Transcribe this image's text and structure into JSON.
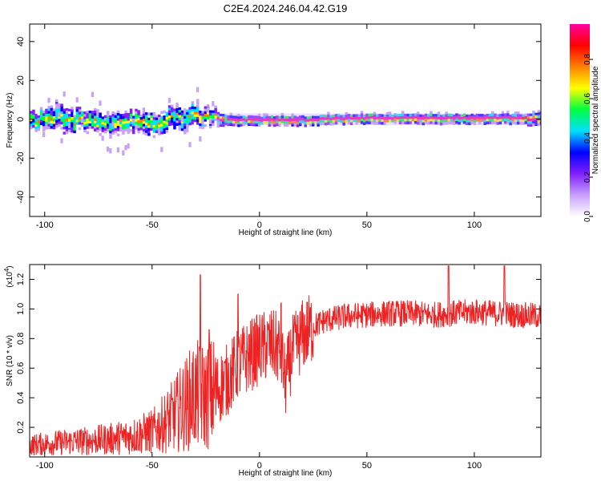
{
  "title": "C2E4.2024.246.04.42.G19",
  "chart_data": [
    {
      "type": "heatmap",
      "xlabel": "Height of straight line (km)",
      "ylabel": "Frequency (Hz)",
      "xlim": [
        -107,
        131
      ],
      "ylim": [
        -50,
        49
      ],
      "xticks": [
        -100,
        -50,
        0,
        50,
        100
      ],
      "yticks": [
        -40,
        -20,
        0,
        20,
        40
      ],
      "xtick_labels": [
        "-100",
        "-50",
        "0",
        "50",
        "100"
      ],
      "ytick_labels": [
        "-40",
        "-20",
        "0",
        "20",
        "40"
      ],
      "ridge": {
        "x": [
          -107,
          -100,
          -95,
          -90,
          -85,
          -80,
          -75,
          -70,
          -65,
          -60,
          -55,
          -50,
          -45,
          -40,
          -35,
          -30,
          -25,
          -20,
          -15,
          -10,
          -5,
          0,
          10,
          20,
          40,
          60,
          80,
          100,
          120,
          131
        ],
        "freq": [
          0,
          1,
          2,
          1,
          0,
          0,
          -1,
          -1,
          -2,
          -1,
          0,
          -1,
          0,
          1,
          2,
          2,
          1,
          1,
          0,
          0,
          0,
          0,
          0,
          0,
          1,
          1,
          1,
          1,
          1,
          1
        ],
        "spread": [
          5,
          6,
          7,
          7,
          6,
          6,
          6,
          6,
          6,
          6,
          6,
          6,
          6,
          7,
          7,
          7,
          5,
          4,
          3,
          3,
          3,
          3,
          3,
          3,
          3,
          3,
          3,
          3,
          3,
          4
        ]
      },
      "colorbar": {
        "label": "Normalized spectral amplitude",
        "range": [
          0,
          0.98
        ],
        "ticks": [
          0,
          0.2,
          0.4,
          0.6,
          0.8
        ],
        "tick_labels": [
          "0.0",
          "0.2",
          "0.4",
          "0.6",
          "0.8"
        ],
        "colors": [
          "#ffffff",
          "#c8a0ff",
          "#8020ff",
          "#0000ff",
          "#00e0ff",
          "#00ff40",
          "#ffff00",
          "#ff8000",
          "#ff0000",
          "#ff00a0"
        ]
      }
    },
    {
      "type": "line",
      "xlabel": "Height of straight line (km)",
      "ylabel": "SNR (10 * v/v)",
      "yscale_label": "(x10",
      "yscale_exp": "4",
      "yscale_close": ")",
      "xlim": [
        -107,
        131
      ],
      "ylim": [
        0,
        1.3
      ],
      "xticks": [
        -100,
        -50,
        0,
        50,
        100
      ],
      "yticks": [
        0.2,
        0.4,
        0.6,
        0.8,
        1.0,
        1.2
      ],
      "xtick_labels": [
        "-100",
        "-50",
        "0",
        "50",
        "100"
      ],
      "ytick_labels": [
        "0.2",
        "0.4",
        "0.6",
        "0.8",
        "1.0",
        "1.2"
      ],
      "color": "#ee2222",
      "trend": {
        "x": [
          -107,
          -100,
          -90,
          -80,
          -70,
          -60,
          -50,
          -45,
          -40,
          -35,
          -30,
          -25,
          -20,
          -15,
          -12,
          -10,
          -5,
          0,
          5,
          10,
          12,
          15,
          20,
          25,
          30,
          40,
          50,
          60,
          70,
          80,
          90,
          100,
          110,
          120,
          131
        ],
        "y": [
          0.08,
          0.09,
          0.1,
          0.11,
          0.12,
          0.14,
          0.17,
          0.22,
          0.28,
          0.35,
          0.42,
          0.4,
          0.45,
          0.52,
          0.58,
          0.62,
          0.68,
          0.73,
          0.76,
          0.72,
          0.5,
          0.7,
          0.82,
          0.88,
          0.92,
          0.95,
          0.96,
          0.97,
          0.97,
          0.96,
          0.97,
          0.98,
          0.97,
          0.96,
          0.95
        ]
      },
      "spikes": [
        {
          "x": -27.5,
          "y": 1.23
        },
        {
          "x": -23.5,
          "y": 0.86
        },
        {
          "x": -10,
          "y": 1.1
        },
        {
          "x": 10,
          "y": 1.04
        },
        {
          "x": 88,
          "y": 1.29
        },
        {
          "x": 114,
          "y": 1.29
        }
      ]
    }
  ]
}
